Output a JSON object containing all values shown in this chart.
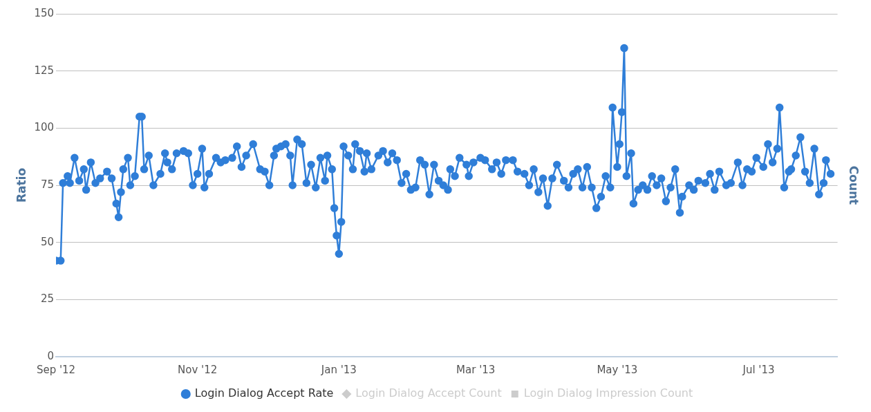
{
  "chart_data": {
    "type": "line",
    "ylabel": "Ratio",
    "y2label": "Count",
    "ylim": [
      0,
      150
    ],
    "yticks": [
      0,
      25,
      50,
      75,
      100,
      125,
      150
    ],
    "xlim": [
      "2012-09-01",
      "2013-08-04"
    ],
    "xticks": [
      {
        "value": "2012-09-01",
        "label": "Sep '12"
      },
      {
        "value": "2012-11-01",
        "label": "Nov '12"
      },
      {
        "value": "2013-01-01",
        "label": "Jan '13"
      },
      {
        "value": "2013-03-01",
        "label": "Mar '13"
      },
      {
        "value": "2013-05-01",
        "label": "May '13"
      },
      {
        "value": "2013-07-01",
        "label": "Jul '13"
      }
    ],
    "grid": "y",
    "legend": "bottom",
    "marker": "circle",
    "line_style": "solid",
    "x": [
      "2012-09-01",
      "2012-09-03",
      "2012-09-04",
      "2012-09-06",
      "2012-09-07",
      "2012-09-09",
      "2012-09-11",
      "2012-09-13",
      "2012-09-14",
      "2012-09-16",
      "2012-09-18",
      "2012-09-20",
      "2012-09-23",
      "2012-09-25",
      "2012-09-27",
      "2012-09-28",
      "2012-09-29",
      "2012-09-30",
      "2012-10-02",
      "2012-10-03",
      "2012-10-05",
      "2012-10-07",
      "2012-10-08",
      "2012-10-09",
      "2012-10-11",
      "2012-10-13",
      "2012-10-16",
      "2012-10-18",
      "2012-10-19",
      "2012-10-21",
      "2012-10-23",
      "2012-10-26",
      "2012-10-28",
      "2012-10-30",
      "2012-11-01",
      "2012-11-03",
      "2012-11-04",
      "2012-11-06",
      "2012-11-09",
      "2012-11-11",
      "2012-11-13",
      "2012-11-16",
      "2012-11-18",
      "2012-11-20",
      "2012-11-22",
      "2012-11-25",
      "2012-11-28",
      "2012-11-30",
      "2012-12-02",
      "2012-12-04",
      "2012-12-05",
      "2012-12-07",
      "2012-12-09",
      "2012-12-11",
      "2012-12-12",
      "2012-12-14",
      "2012-12-16",
      "2012-12-18",
      "2012-12-20",
      "2012-12-22",
      "2012-12-24",
      "2012-12-26",
      "2012-12-27",
      "2012-12-29",
      "2012-12-30",
      "2012-12-31",
      "2013-01-01",
      "2013-01-02",
      "2013-01-03",
      "2013-01-05",
      "2013-01-07",
      "2013-01-08",
      "2013-01-10",
      "2013-01-12",
      "2013-01-13",
      "2013-01-15",
      "2013-01-18",
      "2013-01-20",
      "2013-01-22",
      "2013-01-24",
      "2013-01-26",
      "2013-01-28",
      "2013-01-30",
      "2013-02-01",
      "2013-02-03",
      "2013-02-05",
      "2013-02-07",
      "2013-02-09",
      "2013-02-11",
      "2013-02-13",
      "2013-02-15",
      "2013-02-17",
      "2013-02-18",
      "2013-02-20",
      "2013-02-22",
      "2013-02-25",
      "2013-02-26",
      "2013-02-28",
      "2013-03-03",
      "2013-03-05",
      "2013-03-08",
      "2013-03-10",
      "2013-03-12",
      "2013-03-14",
      "2013-03-17",
      "2013-03-19",
      "2013-03-22",
      "2013-03-24",
      "2013-03-26",
      "2013-03-28",
      "2013-03-30",
      "2013-04-01",
      "2013-04-03",
      "2013-04-05",
      "2013-04-08",
      "2013-04-10",
      "2013-04-12",
      "2013-04-14",
      "2013-04-16",
      "2013-04-18",
      "2013-04-20",
      "2013-04-22",
      "2013-04-24",
      "2013-04-26",
      "2013-04-28",
      "2013-04-29",
      "2013-05-01",
      "2013-05-02",
      "2013-05-03",
      "2013-05-04",
      "2013-05-05",
      "2013-05-07",
      "2013-05-08",
      "2013-05-10",
      "2013-05-12",
      "2013-05-14",
      "2013-05-16",
      "2013-05-18",
      "2013-05-20",
      "2013-05-22",
      "2013-05-24",
      "2013-05-26",
      "2013-05-28",
      "2013-05-29",
      "2013-06-01",
      "2013-06-03",
      "2013-06-05",
      "2013-06-08",
      "2013-06-10",
      "2013-06-12",
      "2013-06-14",
      "2013-06-17",
      "2013-06-19",
      "2013-06-22",
      "2013-06-24",
      "2013-06-26",
      "2013-06-28",
      "2013-06-30",
      "2013-07-03",
      "2013-07-05",
      "2013-07-07",
      "2013-07-09",
      "2013-07-10",
      "2013-07-12",
      "2013-07-14",
      "2013-07-15",
      "2013-07-17",
      "2013-07-19",
      "2013-07-21",
      "2013-07-23",
      "2013-07-25",
      "2013-07-27",
      "2013-07-29",
      "2013-07-30",
      "2013-08-01"
    ],
    "series": [
      {
        "name": "Login Dialog Accept Rate",
        "color": "#2f7ed8",
        "values": [
          42,
          42,
          76,
          79,
          76,
          87,
          77,
          82,
          73,
          85,
          76,
          78,
          81,
          78,
          67,
          61,
          72,
          82,
          87,
          75,
          79,
          105,
          105,
          82,
          88,
          75,
          80,
          89,
          85,
          82,
          89,
          90,
          89,
          75,
          80,
          91,
          74,
          80,
          87,
          85,
          86,
          87,
          92,
          83,
          88,
          93,
          82,
          81,
          75,
          88,
          91,
          92,
          93,
          88,
          75,
          95,
          93,
          76,
          84,
          74,
          87,
          77,
          88,
          82,
          65,
          53,
          45,
          59,
          92,
          88,
          82,
          93,
          90,
          81,
          89,
          82,
          88,
          90,
          85,
          89,
          86,
          76,
          80,
          73,
          74,
          86,
          84,
          71,
          84,
          77,
          75,
          73,
          82,
          79,
          87,
          84,
          79,
          85,
          87,
          86,
          82,
          85,
          80,
          86,
          86,
          81,
          80,
          75,
          82,
          72,
          78,
          66,
          78,
          84,
          77,
          74,
          80,
          82,
          74,
          83,
          74,
          65,
          70,
          79,
          74,
          109,
          83,
          93,
          107,
          135,
          79,
          89,
          67,
          73,
          75,
          73,
          79,
          75,
          78,
          68,
          74,
          82,
          63,
          70,
          75,
          73,
          77,
          76,
          80,
          73,
          81,
          75,
          76,
          85,
          75,
          82,
          81,
          87,
          83,
          93,
          85,
          91,
          109,
          74,
          81,
          82,
          88,
          96,
          81,
          76,
          91,
          71,
          76,
          86,
          80
        ]
      },
      {
        "name": "Login Dialog Accept Count",
        "color": "#cccccc",
        "marker": "diamond",
        "values": [
          null,
          null,
          null,
          null,
          null,
          null,
          null,
          null,
          null,
          null,
          null,
          null,
          null,
          null,
          null,
          null,
          null,
          null,
          null,
          null,
          null,
          null,
          null,
          null,
          null,
          null,
          null,
          null,
          null,
          null,
          null,
          null,
          null,
          null,
          null,
          null,
          null,
          null,
          null,
          null,
          null,
          null,
          null,
          null,
          null,
          null,
          null,
          null,
          null,
          null,
          null,
          null,
          null,
          null,
          null,
          null,
          null,
          null,
          null,
          null,
          null,
          null,
          null,
          null,
          null,
          null,
          null,
          null,
          null,
          null,
          null,
          null,
          null,
          null,
          null,
          null,
          null,
          null,
          null,
          null,
          null,
          null,
          null,
          null,
          null,
          null,
          null,
          null,
          null,
          null,
          null,
          null,
          null,
          null,
          null,
          null,
          null,
          null,
          null,
          null,
          null,
          null,
          null,
          null,
          null,
          null,
          null,
          null,
          null,
          null,
          null,
          null,
          null,
          null,
          null,
          null,
          null,
          null,
          null,
          null,
          null,
          null,
          null,
          null,
          null,
          null,
          null,
          null,
          null,
          null,
          null,
          null,
          null,
          null,
          null,
          null,
          null,
          null,
          null,
          null,
          null,
          null,
          null,
          null,
          null,
          null,
          null,
          null,
          null,
          null,
          null,
          null,
          null,
          null,
          null,
          null,
          null,
          null,
          null,
          null,
          null,
          null,
          null,
          null,
          null,
          null,
          null,
          null,
          null,
          null,
          null,
          null,
          null,
          null,
          null
        ]
      },
      {
        "name": "Login Dialog Impression Count",
        "color": "#cccccc",
        "marker": "square",
        "values": [
          null,
          null,
          null,
          null,
          null,
          null,
          null,
          null,
          null,
          null,
          null,
          null,
          null,
          null,
          null,
          null,
          null,
          null,
          null,
          null,
          null,
          null,
          null,
          null,
          null,
          null,
          null,
          null,
          null,
          null,
          null,
          null,
          null,
          null,
          null,
          null,
          null,
          null,
          null,
          null,
          null,
          null,
          null,
          null,
          null,
          null,
          null,
          null,
          null,
          null,
          null,
          null,
          null,
          null,
          null,
          null,
          null,
          null,
          null,
          null,
          null,
          null,
          null,
          null,
          null,
          null,
          null,
          null,
          null,
          null,
          null,
          null,
          null,
          null,
          null,
          null,
          null,
          null,
          null,
          null,
          null,
          null,
          null,
          null,
          null,
          null,
          null,
          null,
          null,
          null,
          null,
          null,
          null,
          null,
          null,
          null,
          null,
          null,
          null,
          null,
          null,
          null,
          null,
          null,
          null,
          null,
          null,
          null,
          null,
          null,
          null,
          null,
          null,
          null,
          null,
          null,
          null,
          null,
          null,
          null,
          null,
          null,
          null,
          null,
          null,
          null,
          null,
          null,
          null,
          null,
          null,
          null,
          null,
          null,
          null,
          null,
          null,
          null,
          null,
          null,
          null,
          null,
          null,
          null,
          null,
          null,
          null,
          null,
          null,
          null,
          null,
          null,
          null,
          null,
          null,
          null,
          null,
          null,
          null,
          null,
          null,
          null,
          null,
          null,
          null,
          null,
          null,
          null,
          null,
          null,
          null,
          null,
          null,
          null,
          null
        ]
      }
    ]
  }
}
